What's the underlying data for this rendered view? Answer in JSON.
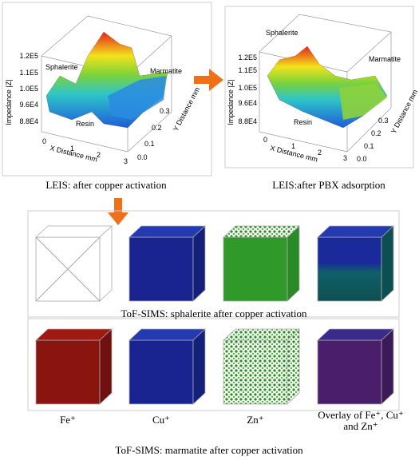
{
  "panels": [
    {
      "z_axis_label": "Impedance |Z|",
      "x_axis_label": "X Distance  mm",
      "y_axis_label": "Y Distance mm",
      "z_ticks": [
        "1.2E5",
        "1.1E5",
        "1.0E5",
        "9.6E4",
        "8.8E4"
      ],
      "x_ticks": [
        "0",
        "1",
        "2",
        "3"
      ],
      "y_ticks": [
        "0.0",
        "0.1",
        "0.2",
        "0.3"
      ],
      "annotations": [
        "Sphalerite",
        "Resin",
        "Marmatite"
      ],
      "caption": "LEIS: after copper activation"
    },
    {
      "z_axis_label": "Impedance |Z|",
      "x_axis_label": "X Distance  mm",
      "y_axis_label": "Y Distance mm",
      "z_ticks": [
        "1.2E5",
        "1.1E5",
        "1.0E5",
        "9.6E4",
        "8.8E4"
      ],
      "x_ticks": [
        "0",
        "1",
        "2",
        "3"
      ],
      "y_ticks": [
        "0.0",
        "0.1",
        "0.2",
        "0.3"
      ],
      "annotations": [
        "Sphalerite",
        "Marmatite",
        "Resin"
      ],
      "caption": "LEIS:after PBX adsorption"
    }
  ],
  "tof_sims": {
    "rows": [
      {
        "caption": "ToF-SIMS: sphalerite after copper activation"
      },
      {
        "caption": "ToF-SIMS: marmatite  after copper activation",
        "labels": [
          "Fe⁺",
          "Cu⁺",
          "Zn⁺",
          "Overlay of Fe⁺, Cu⁺",
          "and Zn⁺"
        ]
      }
    ]
  }
}
